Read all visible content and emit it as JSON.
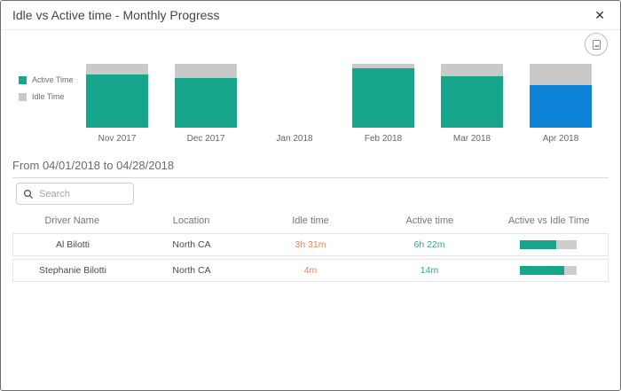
{
  "modal": {
    "title": "Idle vs Active time - Monthly Progress",
    "close_glyph": "✕"
  },
  "toolbar": {
    "export_icon": "export-image-icon"
  },
  "chart_data": {
    "type": "bar",
    "stacked": true,
    "title": "Idle vs Active time - Monthly Progress",
    "categories": [
      "Nov 2017",
      "Dec 2017",
      "Jan 2018",
      "Feb 2018",
      "Mar 2018",
      "Apr 2018"
    ],
    "series": [
      {
        "name": "Active Time",
        "values": [
          83,
          78,
          null,
          93,
          80,
          66
        ]
      },
      {
        "name": "Idle Time",
        "values": [
          17,
          22,
          null,
          7,
          20,
          34
        ]
      }
    ],
    "highlighted_category": "Apr 2018",
    "ylim": [
      0,
      100
    ],
    "legend_position": "left",
    "grid": false,
    "colors": {
      "active": "#17a58c",
      "idle": "#c9c9c9",
      "active_selected": "#0d83d8"
    }
  },
  "period": {
    "label": "From 04/01/2018 to 04/28/2018"
  },
  "search": {
    "placeholder": "Search",
    "value": "",
    "icon": "search-icon"
  },
  "table": {
    "columns": [
      "Driver Name",
      "Location",
      "Idle time",
      "Active time",
      "Active vs Idle Time"
    ],
    "rows": [
      {
        "driver": "Al Bilotti",
        "location": "North CA",
        "idle": "3h 31m",
        "active": "6h 22m",
        "active_pct": 64
      },
      {
        "driver": "Stephanie Bilotti",
        "location": "North CA",
        "idle": "4m",
        "active": "14m",
        "active_pct": 78
      }
    ]
  }
}
